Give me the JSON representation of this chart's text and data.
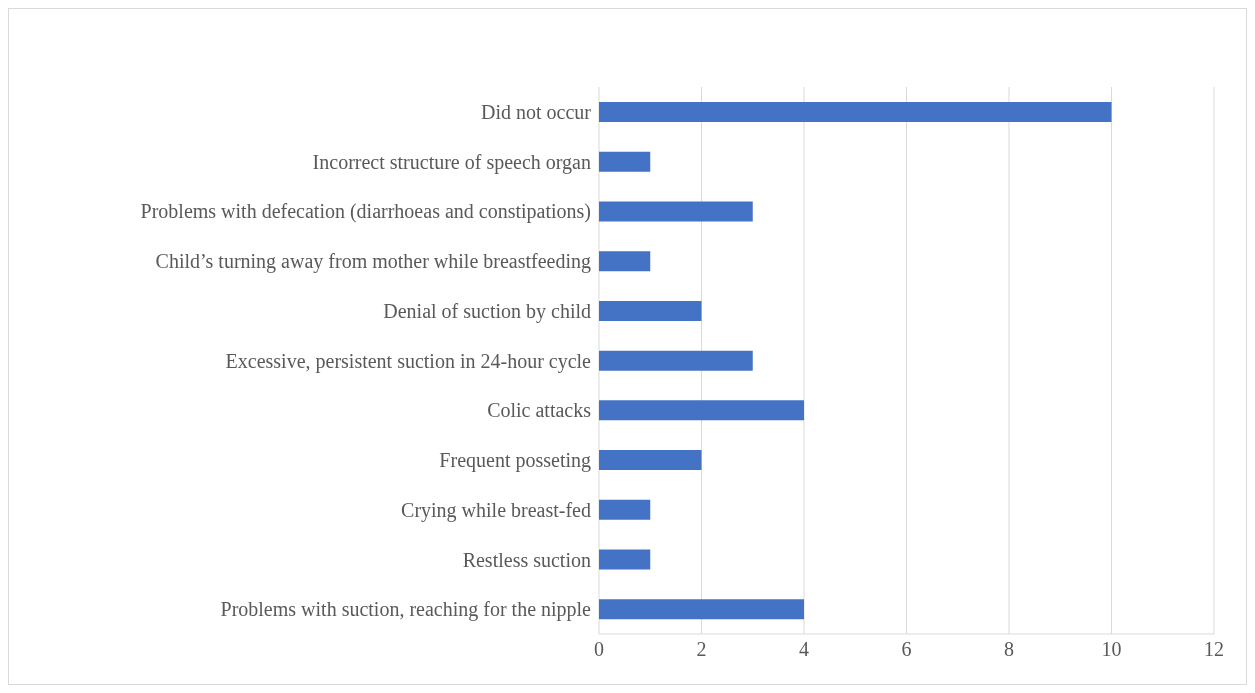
{
  "chart_data": {
    "type": "bar",
    "orientation": "horizontal",
    "categories": [
      "Did not occur",
      "Incorrect structure of speech organ",
      "Problems with defecation (diarrhoeas and constipations)",
      "Child’s turning away from mother while breastfeeding",
      "Denial of suction by child",
      "Excessive, persistent suction in 24-hour cycle",
      "Colic attacks",
      "Frequent posseting",
      "Crying while breast-fed",
      "Restless suction",
      "Problems with suction, reaching for the nipple"
    ],
    "values": [
      10,
      1,
      3,
      1,
      2,
      3,
      4,
      2,
      1,
      1,
      4
    ],
    "color": "#4472c4",
    "xlim": [
      0,
      12
    ],
    "xticks": [
      0,
      2,
      4,
      6,
      8,
      10,
      12
    ],
    "grid": "x"
  }
}
